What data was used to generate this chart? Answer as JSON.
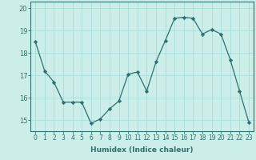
{
  "x": [
    0,
    1,
    2,
    3,
    4,
    5,
    6,
    7,
    8,
    9,
    10,
    11,
    12,
    13,
    14,
    15,
    16,
    17,
    18,
    19,
    20,
    21,
    22,
    23
  ],
  "y": [
    18.5,
    17.2,
    16.7,
    15.8,
    15.8,
    15.8,
    14.85,
    15.05,
    15.5,
    15.85,
    17.05,
    17.15,
    16.3,
    17.6,
    18.55,
    19.55,
    19.6,
    19.55,
    18.85,
    19.05,
    18.85,
    17.7,
    16.3,
    14.9
  ],
  "line_color": "#2e7070",
  "marker": "D",
  "marker_size": 2.2,
  "bg_color": "#cceee8",
  "grid_color": "#aaddda",
  "xlabel": "Humidex (Indice chaleur)",
  "ylim": [
    14.5,
    20.3
  ],
  "xlim": [
    -0.5,
    23.5
  ],
  "yticks": [
    15,
    16,
    17,
    18,
    19,
    20
  ],
  "xticks": [
    0,
    1,
    2,
    3,
    4,
    5,
    6,
    7,
    8,
    9,
    10,
    11,
    12,
    13,
    14,
    15,
    16,
    17,
    18,
    19,
    20,
    21,
    22,
    23
  ],
  "xtick_labels": [
    "0",
    "1",
    "2",
    "3",
    "4",
    "5",
    "6",
    "7",
    "8",
    "9",
    "10",
    "11",
    "12",
    "13",
    "14",
    "15",
    "16",
    "17",
    "18",
    "19",
    "20",
    "21",
    "22",
    "23"
  ],
  "tick_color": "#2e7070",
  "spine_color": "#2e7070",
  "xlabel_fontsize": 6.5,
  "tick_fontsize": 5.5,
  "ytick_fontsize": 6.0
}
